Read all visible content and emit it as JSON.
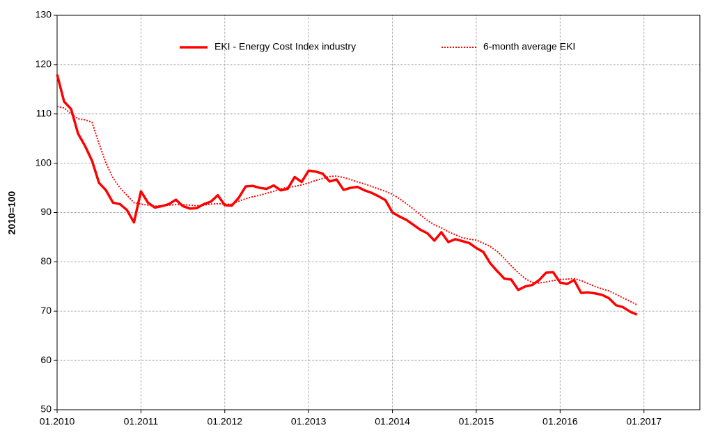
{
  "chart_data": {
    "type": "line",
    "y_label": "2010=100",
    "categories": [
      "01.2010",
      null,
      null,
      null,
      null,
      null,
      null,
      null,
      null,
      null,
      null,
      null,
      "01.2011",
      null,
      null,
      null,
      null,
      null,
      null,
      null,
      null,
      null,
      null,
      null,
      "01.2012",
      null,
      null,
      null,
      null,
      null,
      null,
      null,
      null,
      null,
      null,
      null,
      "01.2013",
      null,
      null,
      null,
      null,
      null,
      null,
      null,
      null,
      null,
      null,
      null,
      "01.2014",
      null,
      null,
      null,
      null,
      null,
      null,
      null,
      null,
      null,
      null,
      null,
      "01.2015",
      null,
      null,
      null,
      null,
      null,
      null,
      null,
      null,
      null,
      null,
      null,
      "01.2016",
      null,
      null,
      null,
      null,
      null,
      null,
      null,
      null,
      null,
      null,
      null,
      "01.2017",
      null,
      null,
      null,
      null,
      null,
      null,
      null
    ],
    "series": [
      {
        "name": "EKI - Energy Cost Index industry",
        "color": "#ff0000",
        "style": "solid",
        "values": [
          118,
          112.5,
          111,
          106,
          103.5,
          100.5,
          96,
          94.5,
          92,
          91.7,
          90.5,
          88,
          94.3,
          92,
          91,
          91.3,
          91.7,
          92.6,
          91.3,
          90.8,
          90.9,
          91.7,
          92.2,
          93.5,
          91.5,
          91.4,
          93,
          95.3,
          95.4,
          95,
          94.8,
          95.5,
          94.5,
          94.8,
          97.2,
          96.2,
          98.5,
          98.3,
          97.9,
          96.3,
          96.7,
          94.6,
          95,
          95.2,
          94.5,
          94,
          93.3,
          92.5,
          90,
          89.2,
          88.5,
          87.5,
          86.5,
          85.8,
          84.3,
          86,
          84,
          84.6,
          84.2,
          83.8,
          82.8,
          82,
          79.7,
          78.1,
          76.6,
          76.4,
          74.3,
          75,
          75.3,
          76.3,
          77.8,
          77.9,
          75.8,
          75.5,
          76.3,
          73.7,
          73.8,
          73.6,
          73.3,
          72.6,
          71.2,
          70.8,
          69.9,
          69.3,
          null,
          null,
          null,
          null,
          null,
          null,
          null,
          null
        ]
      },
      {
        "name": "6-month average EKI",
        "color": "#ff0000",
        "style": "dotted",
        "values": [
          111.5,
          111.2,
          110,
          109,
          108.8,
          108.3,
          104,
          100,
          97,
          95,
          93.5,
          92,
          91.7,
          91.5,
          91.3,
          91.4,
          91.5,
          91.6,
          91.6,
          91.5,
          91.4,
          91.5,
          91.7,
          91.8,
          91.7,
          91.7,
          92.3,
          92.8,
          93.2,
          93.5,
          93.9,
          94.3,
          94.8,
          95.1,
          95.3,
          95.6,
          96,
          96.5,
          96.9,
          97.3,
          97.4,
          97.1,
          96.7,
          96.2,
          95.8,
          95.3,
          94.8,
          94.3,
          93.7,
          92.8,
          91.8,
          90.7,
          89.5,
          88.4,
          87.5,
          86.9,
          86.1,
          85.5,
          84.9,
          84.6,
          84.4,
          83.8,
          83.1,
          82.1,
          80.7,
          79.2,
          77.8,
          76.6,
          75.8,
          75.7,
          75.9,
          76.2,
          76.4,
          76.5,
          76.6,
          76.2,
          75.6,
          75,
          74.5,
          74.1,
          73.4,
          72.7,
          72,
          71.3,
          null,
          null,
          null,
          null,
          null,
          null,
          null,
          null
        ]
      }
    ],
    "ylim": [
      50,
      130
    ],
    "yticks": [
      50,
      60,
      70,
      80,
      90,
      100,
      110,
      120,
      130
    ],
    "grid": true
  }
}
